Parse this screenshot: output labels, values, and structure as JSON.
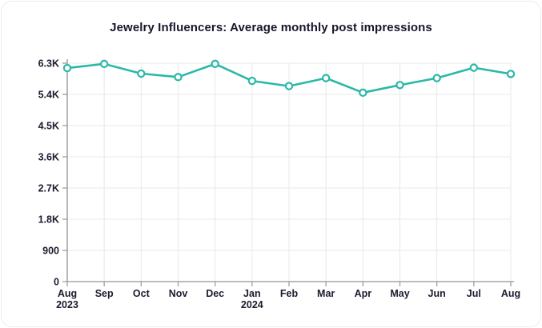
{
  "chart_data": {
    "type": "line",
    "title": "Jewelry Influencers: Average monthly post impressions",
    "series": [
      {
        "name": "Average monthly post impressions",
        "values": [
          6160,
          6280,
          6000,
          5900,
          6280,
          5790,
          5640,
          5870,
          5450,
          5670,
          5870,
          6170,
          5990
        ]
      }
    ],
    "categories": [
      {
        "label": "Aug",
        "sublabel": "2023"
      },
      {
        "label": "Sep"
      },
      {
        "label": "Oct"
      },
      {
        "label": "Nov"
      },
      {
        "label": "Dec"
      },
      {
        "label": "Jan",
        "sublabel": "2024"
      },
      {
        "label": "Feb"
      },
      {
        "label": "Mar"
      },
      {
        "label": "Apr"
      },
      {
        "label": "May"
      },
      {
        "label": "Jun"
      },
      {
        "label": "Jul"
      },
      {
        "label": "Aug"
      }
    ],
    "ylim": [
      0,
      6300
    ],
    "yticks": [
      0,
      900,
      1800,
      2700,
      3600,
      4500,
      5400,
      6300
    ],
    "ytick_labels": [
      "0",
      "900",
      "1.8K",
      "2.7K",
      "3.6K",
      "4.5K",
      "5.4K",
      "6.3K"
    ],
    "xlabel": "",
    "ylabel": "",
    "grid": "both",
    "legend": "none",
    "colors": {
      "line": "#2bb8a7",
      "marker_fill": "#ffffff",
      "grid": "#e8e8e8",
      "axis": "#a5a5a5",
      "text": "#1b1b2f"
    }
  }
}
